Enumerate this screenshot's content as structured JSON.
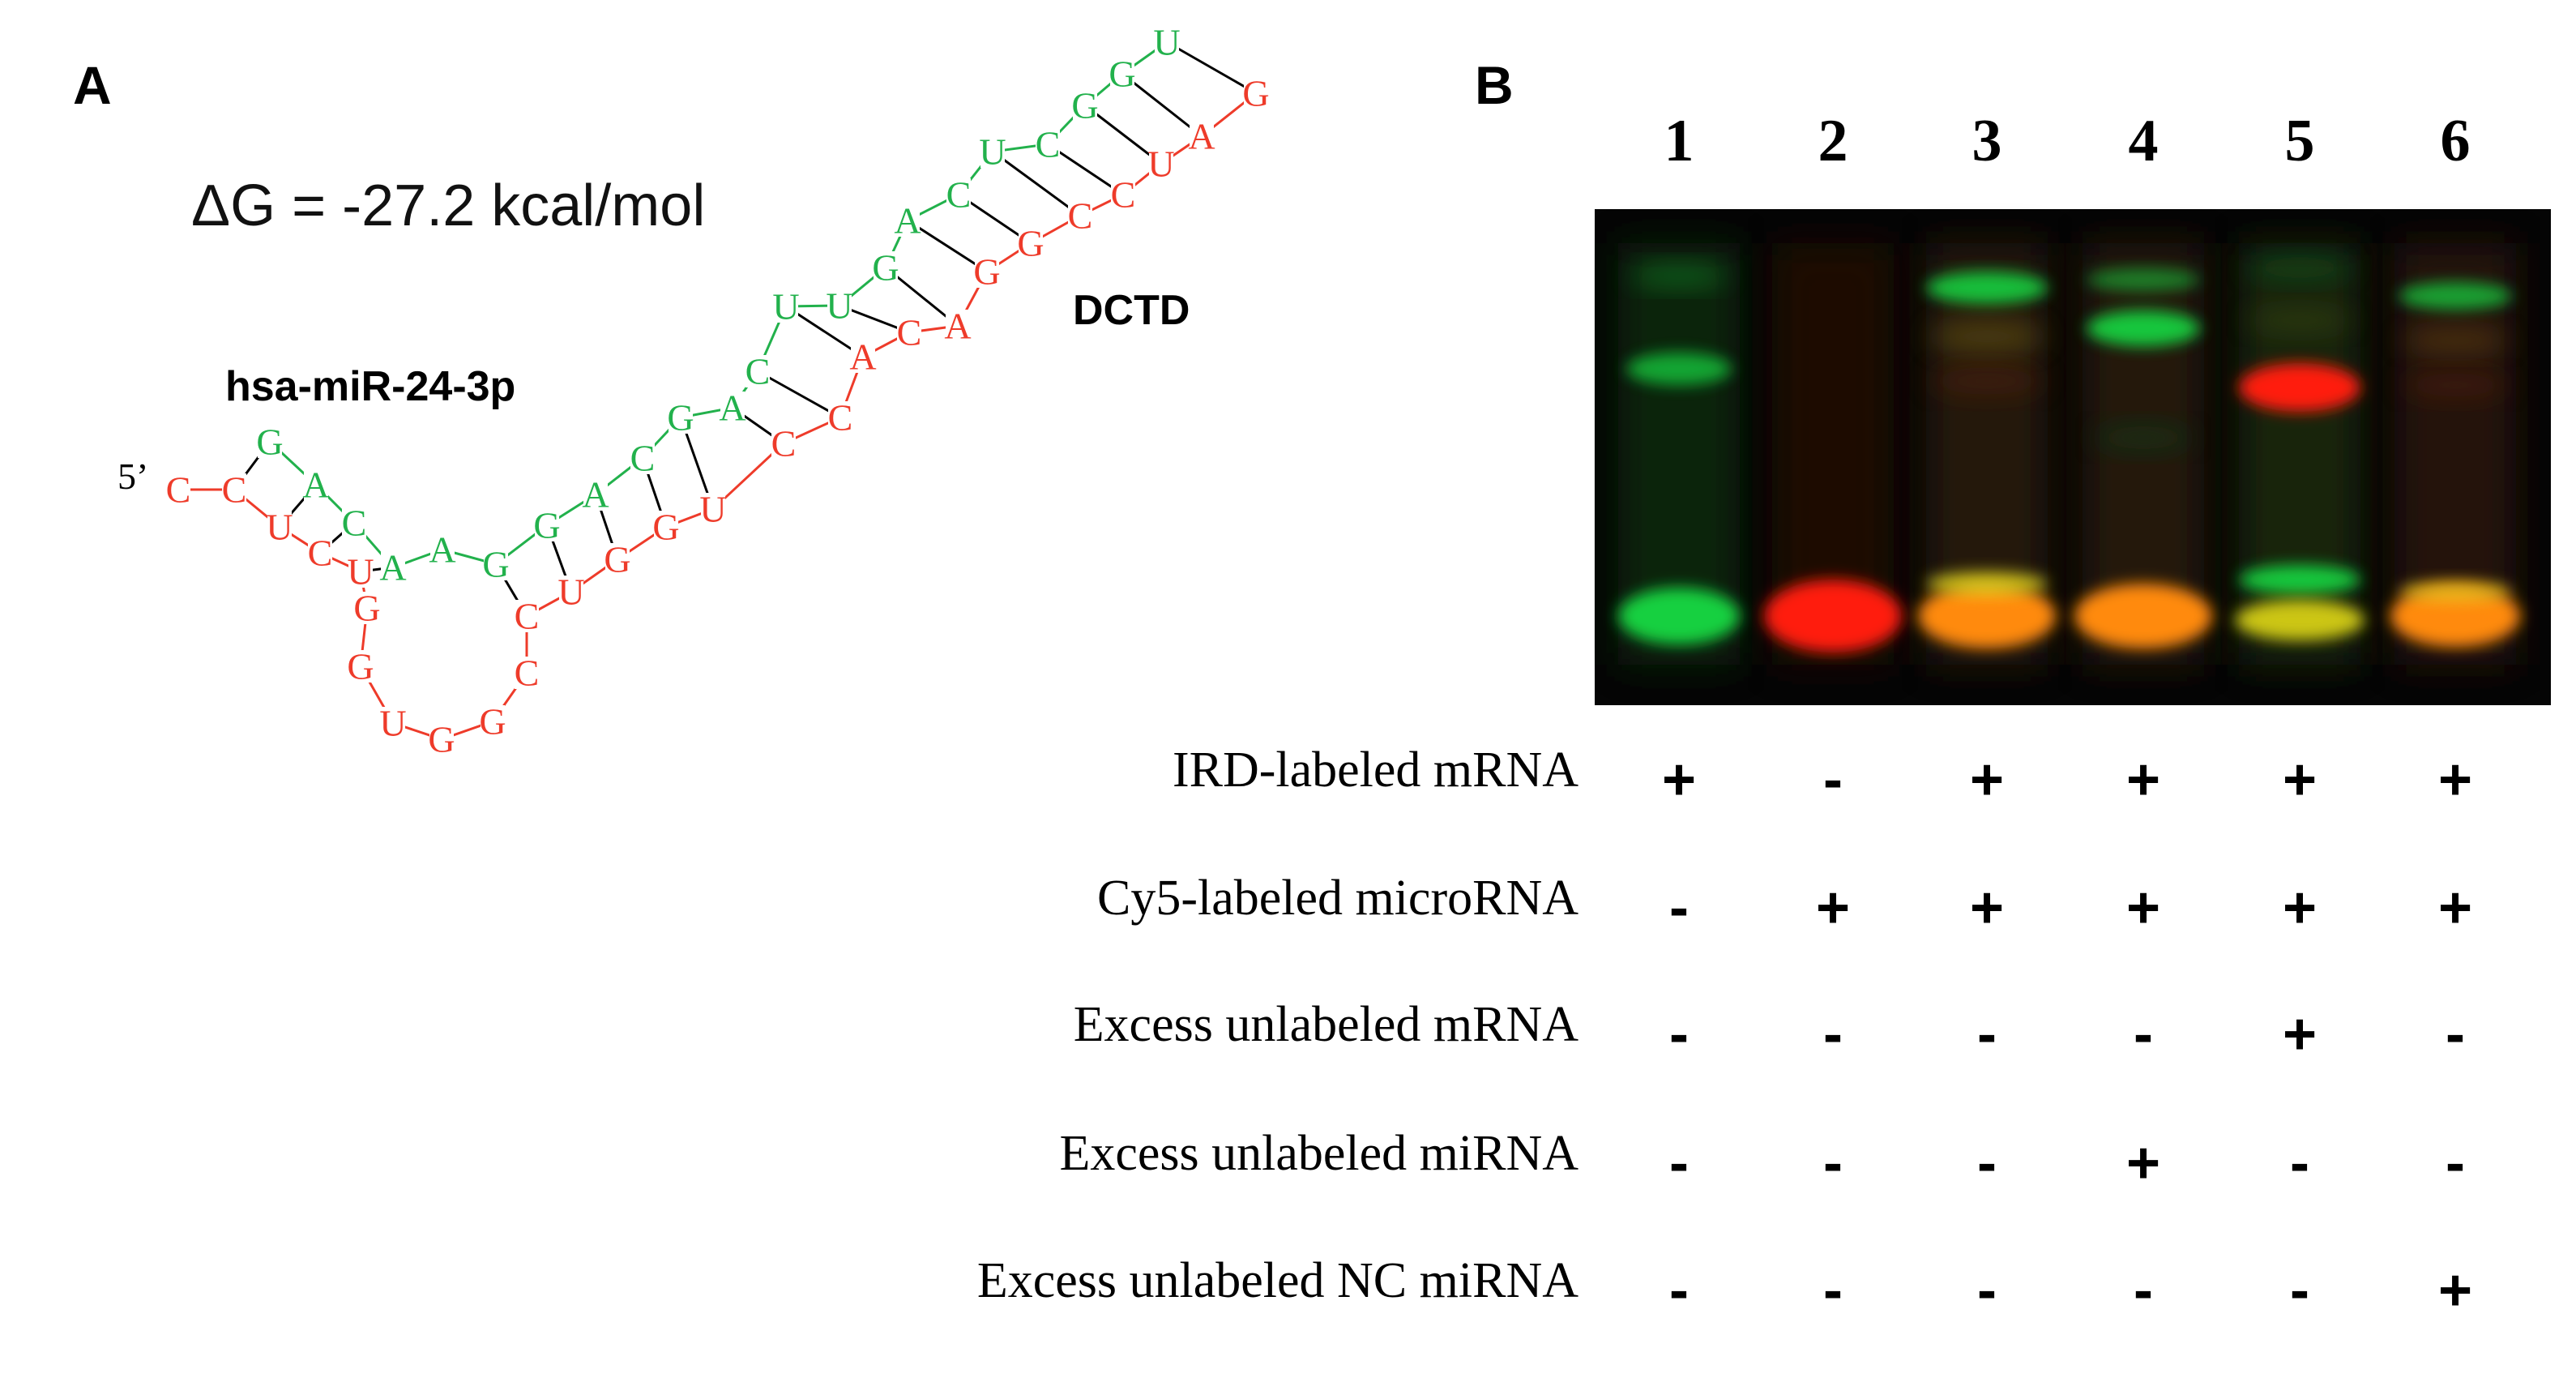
{
  "panelA": {
    "label": "A",
    "deltaG": "ΔG = -27.2 kcal/mol",
    "mirna_label": "hsa-miR-24-3p",
    "mrna_label": "DCTD",
    "five_prime": "5’",
    "colors": {
      "mirna": "#22b14c",
      "mrna": "#ee3b2a",
      "pair": "#000000"
    },
    "green_strand": [
      "G",
      "A",
      "C",
      "A",
      "A",
      "G",
      "G",
      "A",
      "C",
      "G",
      "A",
      "C",
      "U",
      "U",
      "G",
      "A",
      "C",
      "U",
      "C",
      "G",
      "G",
      "U"
    ],
    "red_strand": [
      "C",
      "C",
      "U",
      "C",
      "U",
      "G",
      "G",
      "U",
      "G",
      "G",
      "C",
      "C",
      "U",
      "G",
      "G",
      "U",
      "C",
      "C",
      "A",
      "C",
      "A",
      "G",
      "G",
      "C",
      "C",
      "U",
      "A",
      "G"
    ]
  },
  "panelB": {
    "label": "B",
    "lanes": [
      "1",
      "2",
      "3",
      "4",
      "5",
      "6"
    ],
    "rows": [
      {
        "label": "IRD-labeled mRNA",
        "values": [
          "+",
          "-",
          "+",
          "+",
          "+",
          "+"
        ]
      },
      {
        "label": "Cy5-labeled microRNA",
        "values": [
          "-",
          "+",
          "+",
          "+",
          "+",
          "+"
        ]
      },
      {
        "label": "Excess unlabeled mRNA",
        "values": [
          "-",
          "-",
          "-",
          "-",
          "+",
          "-"
        ]
      },
      {
        "label": "Excess unlabeled miRNA",
        "values": [
          "-",
          "-",
          "-",
          "+",
          "-",
          "-"
        ]
      },
      {
        "label": "Excess unlabeled NC miRNA",
        "values": [
          "-",
          "-",
          "-",
          "-",
          "-",
          "+"
        ]
      }
    ],
    "gel_colors": {
      "background": "#050505",
      "ird": "#18d040",
      "cy5": "#ff1e10",
      "merged": "#ff8a10"
    }
  }
}
